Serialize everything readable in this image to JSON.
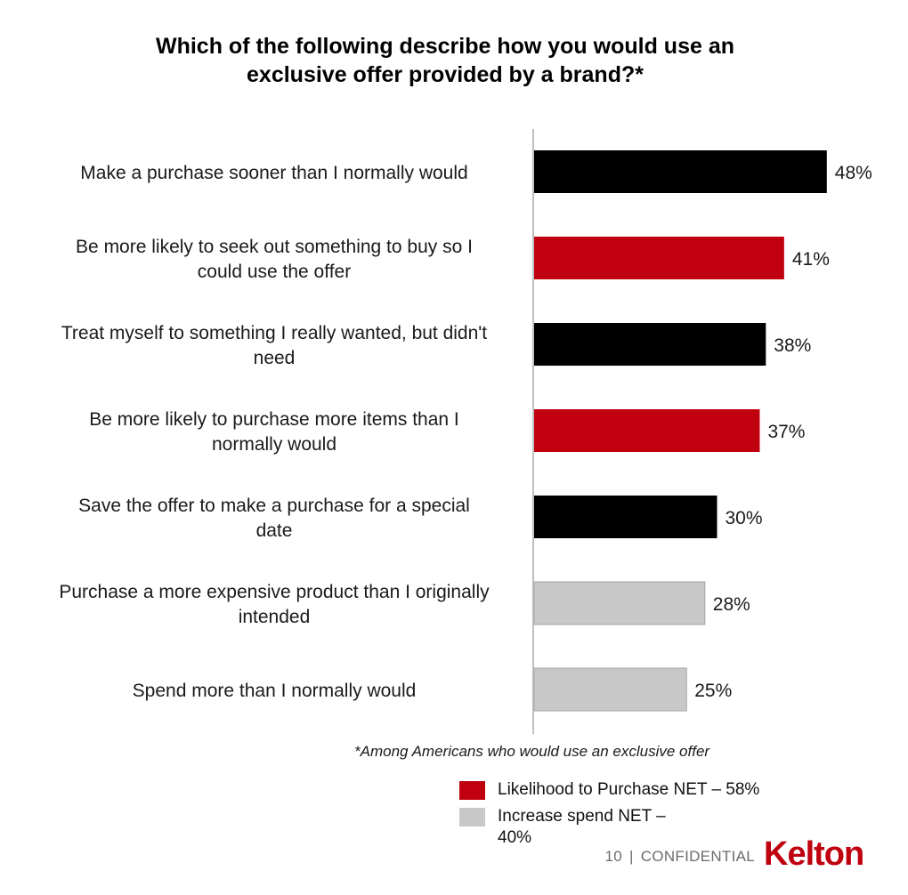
{
  "title_lines": [
    "Which of the following describe how you would use an",
    "exclusive offer provided by a brand?*"
  ],
  "chart_data": {
    "type": "bar",
    "orientation": "horizontal",
    "title": "Which of the following describe how you would use an exclusive offer provided by a brand?*",
    "categories": [
      [
        "Make a purchase sooner than I normally would"
      ],
      [
        "Be more likely to seek out something to buy so I",
        "could use the offer"
      ],
      [
        "Treat myself to something I really wanted, but didn't",
        "need"
      ],
      [
        "Be more likely to purchase more items than I",
        "normally would"
      ],
      [
        "Save the offer to make a purchase for a special",
        "date"
      ],
      [
        "Purchase a more expensive product than I originally",
        "intended"
      ],
      [
        "Spend more than I normally would"
      ]
    ],
    "values": [
      48,
      41,
      38,
      37,
      30,
      28,
      25
    ],
    "value_labels": [
      "48%",
      "41%",
      "38%",
      "37%",
      "30%",
      "28%",
      "25%"
    ],
    "groups": [
      "none",
      "purchase",
      "none",
      "purchase",
      "none",
      "spend",
      "spend"
    ],
    "colors": {
      "none": "#000000",
      "purchase": "#c0000f",
      "spend": "#c8c8c8"
    },
    "xlim": [
      0,
      50
    ],
    "grid": false,
    "legend_position": "bottom-right"
  },
  "footnote": "*Among Americans who would use an exclusive offer",
  "legend": [
    {
      "label": "Likelihood to Purchase NET – 58%",
      "color": "#c0000f"
    },
    {
      "label": "Increase spend NET – 40%",
      "color": "#c8c8c8"
    }
  ],
  "footer": {
    "page": "10",
    "separator": "|",
    "label": "CONFIDENTIAL"
  },
  "logo": {
    "text": "Kelton",
    "color": "#c0000f"
  }
}
